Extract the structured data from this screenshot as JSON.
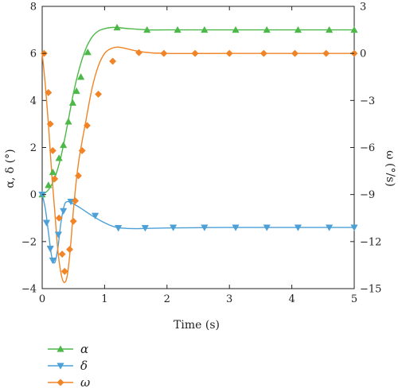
{
  "chart_data": {
    "type": "line",
    "xlabel": "Time (s)",
    "ylabel_left": "α, δ (°)",
    "ylabel_right": "ω (°/s)",
    "xlim": [
      0,
      5
    ],
    "ylim_left": [
      -4,
      8
    ],
    "ylim_right": [
      -15,
      3
    ],
    "xticks": [
      0,
      1,
      2,
      3,
      4,
      5
    ],
    "yticks_left": [
      -4,
      -2,
      0,
      2,
      4,
      6,
      8
    ],
    "yticks_right": [
      -15,
      -12,
      -9,
      -6,
      -3,
      0,
      3
    ],
    "grid": false,
    "legend_position": "bottom-left",
    "series": [
      {
        "name": "α",
        "axis": "left",
        "color": "#4cb848",
        "marker": "triangle-up",
        "line": [
          [
            0,
            0
          ],
          [
            0.1,
            0.2
          ],
          [
            0.2,
            0.7
          ],
          [
            0.3,
            1.6
          ],
          [
            0.4,
            2.9
          ],
          [
            0.5,
            4.3
          ],
          [
            0.6,
            5.4
          ],
          [
            0.7,
            6.2
          ],
          [
            0.8,
            6.7
          ],
          [
            0.9,
            6.95
          ],
          [
            1.0,
            7.05
          ],
          [
            1.1,
            7.1
          ],
          [
            1.2,
            7.1
          ],
          [
            1.4,
            7.05
          ],
          [
            1.7,
            7.0
          ],
          [
            2.0,
            7.0
          ],
          [
            3.0,
            7.0
          ],
          [
            4.0,
            7.0
          ],
          [
            5.0,
            7.0
          ]
        ],
        "markers": [
          [
            0,
            0
          ],
          [
            0.1,
            0.4
          ],
          [
            0.17,
            0.95
          ],
          [
            0.27,
            1.55
          ],
          [
            0.34,
            2.1
          ],
          [
            0.42,
            3.1
          ],
          [
            0.49,
            3.9
          ],
          [
            0.55,
            4.4
          ],
          [
            0.62,
            5.0
          ],
          [
            0.73,
            6.05
          ],
          [
            1.2,
            7.1
          ],
          [
            1.68,
            7.0
          ],
          [
            2.17,
            7.0
          ],
          [
            2.6,
            7.0
          ],
          [
            3.1,
            7.0
          ],
          [
            3.6,
            7.0
          ],
          [
            4.1,
            7.0
          ],
          [
            4.6,
            7.0
          ],
          [
            5.0,
            7.0
          ]
        ]
      },
      {
        "name": "δ",
        "axis": "left",
        "color": "#4ca0d6",
        "marker": "triangle-down",
        "line": [
          [
            0,
            0
          ],
          [
            0.05,
            -0.6
          ],
          [
            0.1,
            -1.6
          ],
          [
            0.15,
            -2.6
          ],
          [
            0.2,
            -2.9
          ],
          [
            0.25,
            -2.3
          ],
          [
            0.3,
            -1.2
          ],
          [
            0.35,
            -0.5
          ],
          [
            0.4,
            -0.3
          ],
          [
            0.5,
            -0.4
          ],
          [
            0.6,
            -0.55
          ],
          [
            0.8,
            -0.9
          ],
          [
            1.0,
            -1.2
          ],
          [
            1.2,
            -1.4
          ],
          [
            1.5,
            -1.45
          ],
          [
            2.0,
            -1.42
          ],
          [
            3.0,
            -1.4
          ],
          [
            4.0,
            -1.4
          ],
          [
            5.0,
            -1.4
          ]
        ],
        "markers": [
          [
            0,
            0
          ],
          [
            0.07,
            -1.2
          ],
          [
            0.13,
            -2.3
          ],
          [
            0.17,
            -2.8
          ],
          [
            0.26,
            -1.7
          ],
          [
            0.34,
            -0.7
          ],
          [
            0.46,
            -0.3
          ],
          [
            0.85,
            -0.9
          ],
          [
            1.22,
            -1.42
          ],
          [
            1.65,
            -1.42
          ],
          [
            2.1,
            -1.4
          ],
          [
            2.6,
            -1.4
          ],
          [
            3.1,
            -1.4
          ],
          [
            3.6,
            -1.4
          ],
          [
            4.1,
            -1.4
          ],
          [
            4.6,
            -1.4
          ],
          [
            5.0,
            -1.4
          ]
        ]
      },
      {
        "name": "ω",
        "axis": "right",
        "color": "#f08426",
        "marker": "diamond",
        "line": [
          [
            0,
            0
          ],
          [
            0.05,
            -2.0
          ],
          [
            0.1,
            -4.5
          ],
          [
            0.15,
            -7.5
          ],
          [
            0.2,
            -10.0
          ],
          [
            0.25,
            -12.5
          ],
          [
            0.3,
            -14.0
          ],
          [
            0.35,
            -14.6
          ],
          [
            0.4,
            -14.2
          ],
          [
            0.45,
            -12.5
          ],
          [
            0.5,
            -10.0
          ],
          [
            0.55,
            -8.0
          ],
          [
            0.6,
            -6.5
          ],
          [
            0.7,
            -4.3
          ],
          [
            0.8,
            -2.2
          ],
          [
            0.9,
            -0.8
          ],
          [
            1.0,
            0.0
          ],
          [
            1.1,
            0.3
          ],
          [
            1.2,
            0.4
          ],
          [
            1.3,
            0.35
          ],
          [
            1.6,
            0.1
          ],
          [
            2.0,
            0.0
          ],
          [
            3.0,
            0.0
          ],
          [
            4.0,
            0.0
          ],
          [
            5.0,
            0.0
          ]
        ],
        "markers": [
          [
            0.03,
            0.0
          ],
          [
            0.1,
            -2.5
          ],
          [
            0.13,
            -4.5
          ],
          [
            0.17,
            -6.2
          ],
          [
            0.2,
            -8.0
          ],
          [
            0.27,
            -10.5
          ],
          [
            0.32,
            -12.8
          ],
          [
            0.36,
            -13.9
          ],
          [
            0.44,
            -12.5
          ],
          [
            0.5,
            -10.7
          ],
          [
            0.53,
            -9.4
          ],
          [
            0.58,
            -7.8
          ],
          [
            0.64,
            -6.2
          ],
          [
            0.72,
            -4.6
          ],
          [
            0.9,
            -2.6
          ],
          [
            1.13,
            -0.5
          ],
          [
            1.55,
            0.05
          ],
          [
            1.95,
            0.0
          ],
          [
            2.45,
            0.0
          ],
          [
            3.0,
            0.0
          ],
          [
            3.55,
            0.0
          ],
          [
            4.05,
            0.0
          ],
          [
            4.55,
            0.0
          ],
          [
            5.0,
            0.0
          ]
        ]
      }
    ]
  }
}
